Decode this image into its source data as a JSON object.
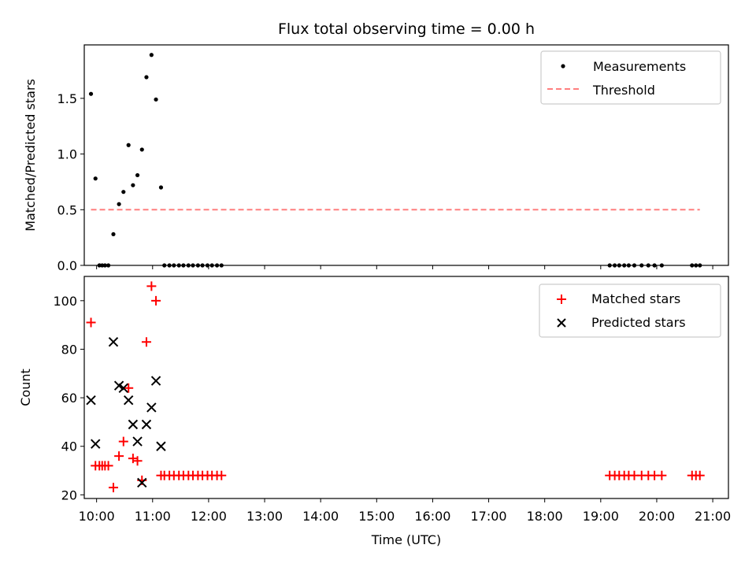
{
  "chart_data": [
    {
      "type": "scatter",
      "title": "Flux total observing time = 0.00 h",
      "xlabel": "",
      "ylabel": "Matched/Predicted stars",
      "xlim": [
        9.78,
        21.28
      ],
      "ylim": [
        0,
        1.98
      ],
      "yticks": [
        0.0,
        0.5,
        1.0,
        1.5
      ],
      "ytick_labels": [
        "0.0",
        "0.5",
        "1.0",
        "1.5"
      ],
      "legend": {
        "position": "top-right",
        "entries": [
          "Measurements",
          "Threshold"
        ]
      },
      "series": [
        {
          "name": "Measurements",
          "marker": "dot",
          "color": "#000000",
          "x": [
            9.9,
            9.98,
            10.05,
            10.1,
            10.15,
            10.21,
            10.3,
            10.4,
            10.48,
            10.57,
            10.65,
            10.73,
            10.81,
            10.89,
            10.98,
            11.06,
            11.15,
            11.21,
            11.3,
            11.38,
            11.47,
            11.55,
            11.64,
            11.72,
            11.81,
            11.89,
            11.98,
            12.06,
            12.15,
            12.23,
            19.16,
            19.25,
            19.33,
            19.42,
            19.5,
            19.6,
            19.73,
            19.85,
            19.96,
            20.09,
            20.63,
            20.7,
            20.77
          ],
          "y": [
            1.54,
            0.78,
            0.0,
            0.0,
            0.0,
            0.0,
            0.28,
            0.55,
            0.66,
            1.08,
            0.72,
            0.81,
            1.04,
            1.69,
            1.89,
            1.49,
            0.7,
            0.0,
            0.0,
            0.0,
            0.0,
            0.0,
            0.0,
            0.0,
            0.0,
            0.0,
            0.0,
            0.0,
            0.0,
            0.0,
            0.0,
            0.0,
            0.0,
            0.0,
            0.0,
            0.0,
            0.0,
            0.0,
            0.0,
            0.0,
            0.0,
            0.0,
            0.0
          ]
        },
        {
          "name": "Threshold",
          "marker": "dashed-line",
          "color": "#ff7f7f",
          "x": [
            9.9,
            20.77
          ],
          "y": [
            0.5,
            0.5
          ]
        }
      ]
    },
    {
      "type": "scatter",
      "title": "",
      "xlabel": "Time (UTC)",
      "ylabel": "Count",
      "xlim": [
        9.78,
        21.28
      ],
      "ylim": [
        18.5,
        110
      ],
      "xticks": [
        10,
        11,
        12,
        13,
        14,
        15,
        16,
        17,
        18,
        19,
        20,
        21
      ],
      "xtick_labels": [
        "10:00",
        "11:00",
        "12:00",
        "13:00",
        "14:00",
        "15:00",
        "16:00",
        "17:00",
        "18:00",
        "19:00",
        "20:00",
        "21:00"
      ],
      "yticks": [
        20,
        40,
        60,
        80,
        100
      ],
      "ytick_labels": [
        "20",
        "40",
        "60",
        "80",
        "100"
      ],
      "legend": {
        "position": "top-right",
        "entries": [
          "Matched stars",
          "Predicted stars"
        ]
      },
      "series": [
        {
          "name": "Matched stars",
          "marker": "plus",
          "color": "#ff0000",
          "x": [
            9.9,
            9.98,
            10.05,
            10.1,
            10.15,
            10.21,
            10.3,
            10.4,
            10.48,
            10.57,
            10.65,
            10.73,
            10.81,
            10.89,
            10.98,
            11.06,
            11.15,
            11.21,
            11.3,
            11.38,
            11.47,
            11.55,
            11.64,
            11.72,
            11.81,
            11.89,
            11.98,
            12.06,
            12.15,
            12.23,
            19.16,
            19.25,
            19.33,
            19.42,
            19.5,
            19.6,
            19.73,
            19.85,
            19.96,
            20.09,
            20.63,
            20.7,
            20.77
          ],
          "y": [
            91,
            32,
            32,
            32,
            32,
            32,
            23,
            36,
            42,
            64,
            35,
            34,
            26,
            83,
            106,
            100,
            28,
            28,
            28,
            28,
            28,
            28,
            28,
            28,
            28,
            28,
            28,
            28,
            28,
            28,
            28,
            28,
            28,
            28,
            28,
            28,
            28,
            28,
            28,
            28,
            28,
            28,
            28
          ]
        },
        {
          "name": "Predicted stars",
          "marker": "x",
          "color": "#000000",
          "x": [
            9.9,
            9.98,
            10.3,
            10.4,
            10.48,
            10.57,
            10.65,
            10.73,
            10.81,
            10.89,
            10.98,
            11.06,
            11.15
          ],
          "y": [
            59,
            41,
            83,
            65,
            64,
            59,
            49,
            42,
            25,
            49,
            56,
            67,
            40
          ]
        }
      ]
    }
  ]
}
